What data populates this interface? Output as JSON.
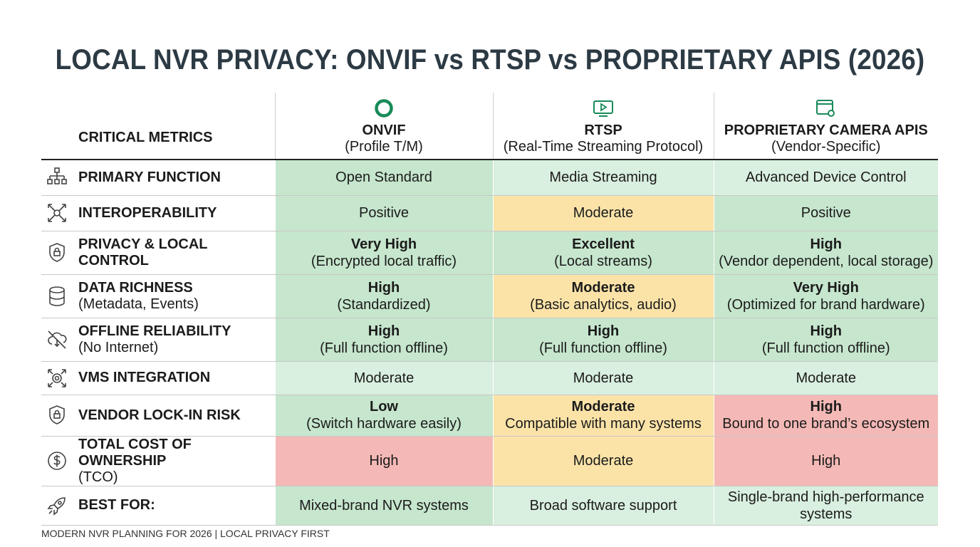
{
  "title": "LOCAL NVR PRIVACY: ONVIF vs RTSP vs PROPRIETARY APIS (2026)",
  "header": {
    "metrics_label": "CRITICAL METRICS",
    "columns": [
      {
        "name": "ONVIF",
        "sub": "(Profile T/M)",
        "icon": "ring-icon"
      },
      {
        "name": "RTSP",
        "sub": "(Real-Time Streaming Protocol)",
        "icon": "play-screen-icon"
      },
      {
        "name": "PROPRIETARY CAMERA APIS",
        "sub": "(Vendor-Specific)",
        "icon": "browser-gear-icon"
      }
    ]
  },
  "colors": {
    "green": "#c6e6cd",
    "light_green": "#d9efdf",
    "yellow": "#fbe3a8",
    "red": "#f4b9b6",
    "accent": "#1a8a5a"
  },
  "rows": [
    {
      "label": "PRIMARY FUNCTION",
      "icon": "hierarchy-icon",
      "cells": [
        {
          "main": "Open Standard",
          "color": "green"
        },
        {
          "main": "Media Streaming",
          "color": "light_green"
        },
        {
          "main": "Advanced Device Control",
          "color": "light_green"
        }
      ]
    },
    {
      "label": "INTEROPERABILITY",
      "icon": "expand-arrows-icon",
      "cells": [
        {
          "main": "Positive",
          "color": "green"
        },
        {
          "main": "Moderate",
          "color": "yellow"
        },
        {
          "main": "Positive",
          "color": "green"
        }
      ]
    },
    {
      "label": "PRIVACY & LOCAL CONTROL",
      "icon": "shield-lock-icon",
      "cells": [
        {
          "bold": "Very High",
          "main": "(Encrypted local traffic)",
          "color": "green"
        },
        {
          "bold": "Excellent",
          "main": "(Local streams)",
          "color": "green"
        },
        {
          "bold": "High",
          "main": "(Vendor dependent, local storage)",
          "color": "green"
        }
      ]
    },
    {
      "label": "DATA RICHNESS",
      "sub": "(Metadata, Events)",
      "icon": "database-icon",
      "cells": [
        {
          "bold": "High",
          "main": "(Standardized)",
          "color": "green"
        },
        {
          "bold": "Moderate",
          "main": "(Basic analytics, audio)",
          "color": "yellow"
        },
        {
          "bold": "Very High",
          "main": "(Optimized for brand hardware)",
          "color": "green"
        }
      ]
    },
    {
      "label": "OFFLINE RELIABILITY",
      "sub": "(No Internet)",
      "icon": "cloud-off-icon",
      "cells": [
        {
          "bold": "High",
          "main": "(Full function offline)",
          "color": "green"
        },
        {
          "bold": "High",
          "main": "(Full function offline)",
          "color": "green"
        },
        {
          "bold": "High",
          "main": "(Full function offline)",
          "color": "green"
        }
      ]
    },
    {
      "label": "VMS INTEGRATION",
      "icon": "camera-expand-icon",
      "cells": [
        {
          "main": "Moderate",
          "color": "light_green"
        },
        {
          "main": "Moderate",
          "color": "light_green"
        },
        {
          "main": "Moderate",
          "color": "light_green"
        }
      ]
    },
    {
      "label": "VENDOR LOCK-IN RISK",
      "icon": "shield-lock-icon",
      "cells": [
        {
          "bold": "Low",
          "main": "(Switch hardware easily)",
          "color": "green"
        },
        {
          "bold": "Moderate",
          "main": "Compatible with many systems",
          "color": "yellow"
        },
        {
          "bold": "High",
          "main": "Bound to one brand’s ecosystem",
          "color": "red"
        }
      ]
    },
    {
      "label": "TOTAL COST OF OWNERSHIP",
      "sub": "(TCO)",
      "icon": "dollar-icon",
      "cells": [
        {
          "main": "High",
          "color": "red"
        },
        {
          "main": "Moderate",
          "color": "yellow"
        },
        {
          "main": "High",
          "color": "red"
        }
      ]
    },
    {
      "label": "BEST FOR:",
      "icon": "rocket-icon",
      "cells": [
        {
          "main": "Mixed-brand NVR systems",
          "color": "green"
        },
        {
          "main": "Broad software support",
          "color": "light_green"
        },
        {
          "main": "Single-brand high-performance systems",
          "color": "light_green"
        }
      ]
    }
  ],
  "footer": "MODERN NVR PLANNING FOR 2026 |  LOCAL PRIVACY FIRST"
}
